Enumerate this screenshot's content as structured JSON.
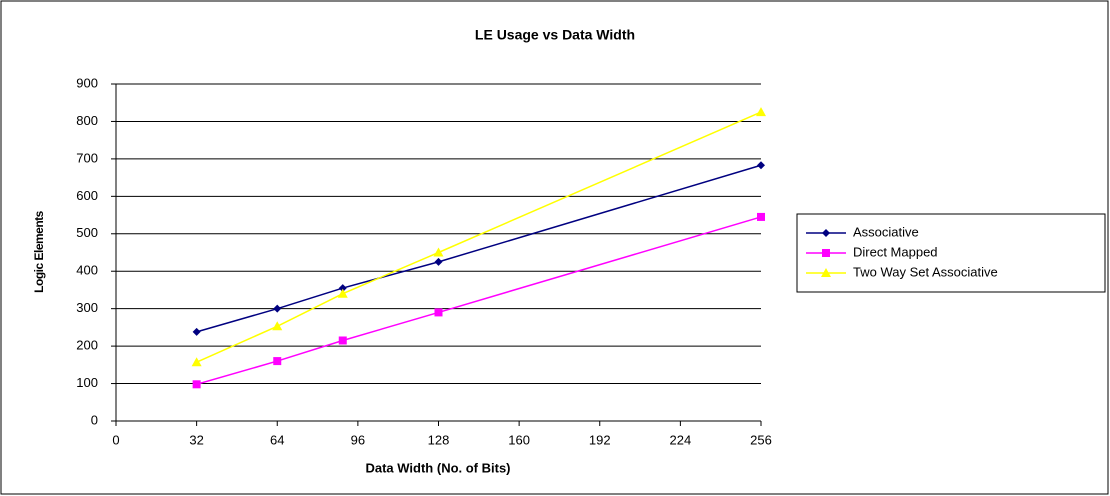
{
  "chart_data": {
    "type": "line",
    "title": "LE Usage vs Data Width",
    "x_label": "Data Width (No. of Bits)",
    "y_label": "Logic Elements",
    "x": [
      32,
      64,
      90,
      128,
      256
    ],
    "series": [
      {
        "name": "Associative",
        "color": "#000080",
        "marker": "diamond",
        "values": [
          238,
          300,
          355,
          425,
          683
        ]
      },
      {
        "name": "Direct Mapped",
        "color": "#ff00ff",
        "marker": "square",
        "values": [
          98,
          160,
          215,
          290,
          545
        ]
      },
      {
        "name": "Two Way Set Associative",
        "color": "#ffff00",
        "marker": "triangle",
        "values": [
          157,
          253,
          340,
          450,
          825
        ]
      }
    ],
    "xlim": [
      0,
      256
    ],
    "xticks": [
      0,
      32,
      64,
      96,
      128,
      160,
      192,
      224,
      256
    ],
    "ylim": [
      0,
      900
    ],
    "yticks": [
      0,
      100,
      200,
      300,
      400,
      500,
      600,
      700,
      800,
      900
    ],
    "grid": true,
    "legend": "right"
  }
}
